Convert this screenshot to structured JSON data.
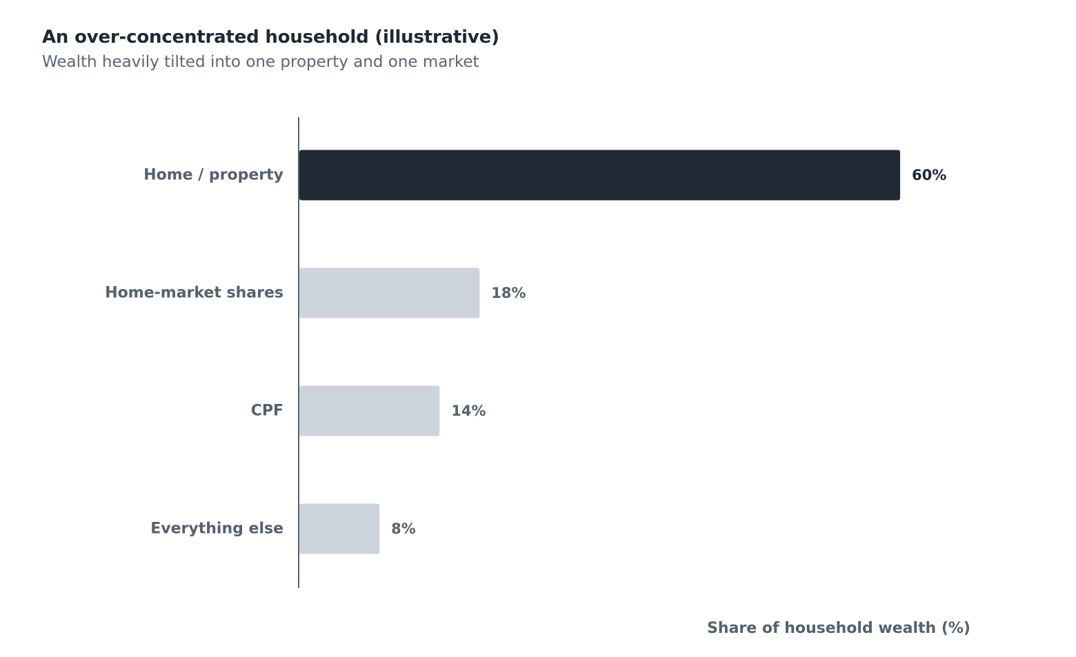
{
  "chart_data": {
    "type": "bar",
    "orientation": "horizontal",
    "title": "An over-concentrated household (illustrative)",
    "subtitle": "Wealth heavily tilted into one property and one market",
    "xlabel": "Share of household wealth (%)",
    "ylabel": "",
    "categories": [
      "Home / property",
      "Home-market shares",
      "CPF",
      "Everything else"
    ],
    "values": [
      60,
      18,
      14,
      8
    ],
    "value_labels": [
      "60%",
      "18%",
      "14%",
      "8%"
    ],
    "highlight_index": 0,
    "xlim": [
      0,
      60
    ],
    "grid": false,
    "legend": "none",
    "colors": {
      "highlight": "#212a34",
      "muted": "#cdd3da",
      "axis": "#56616d",
      "highlight_label": "#1f2933",
      "muted_label": "#56616d"
    }
  }
}
